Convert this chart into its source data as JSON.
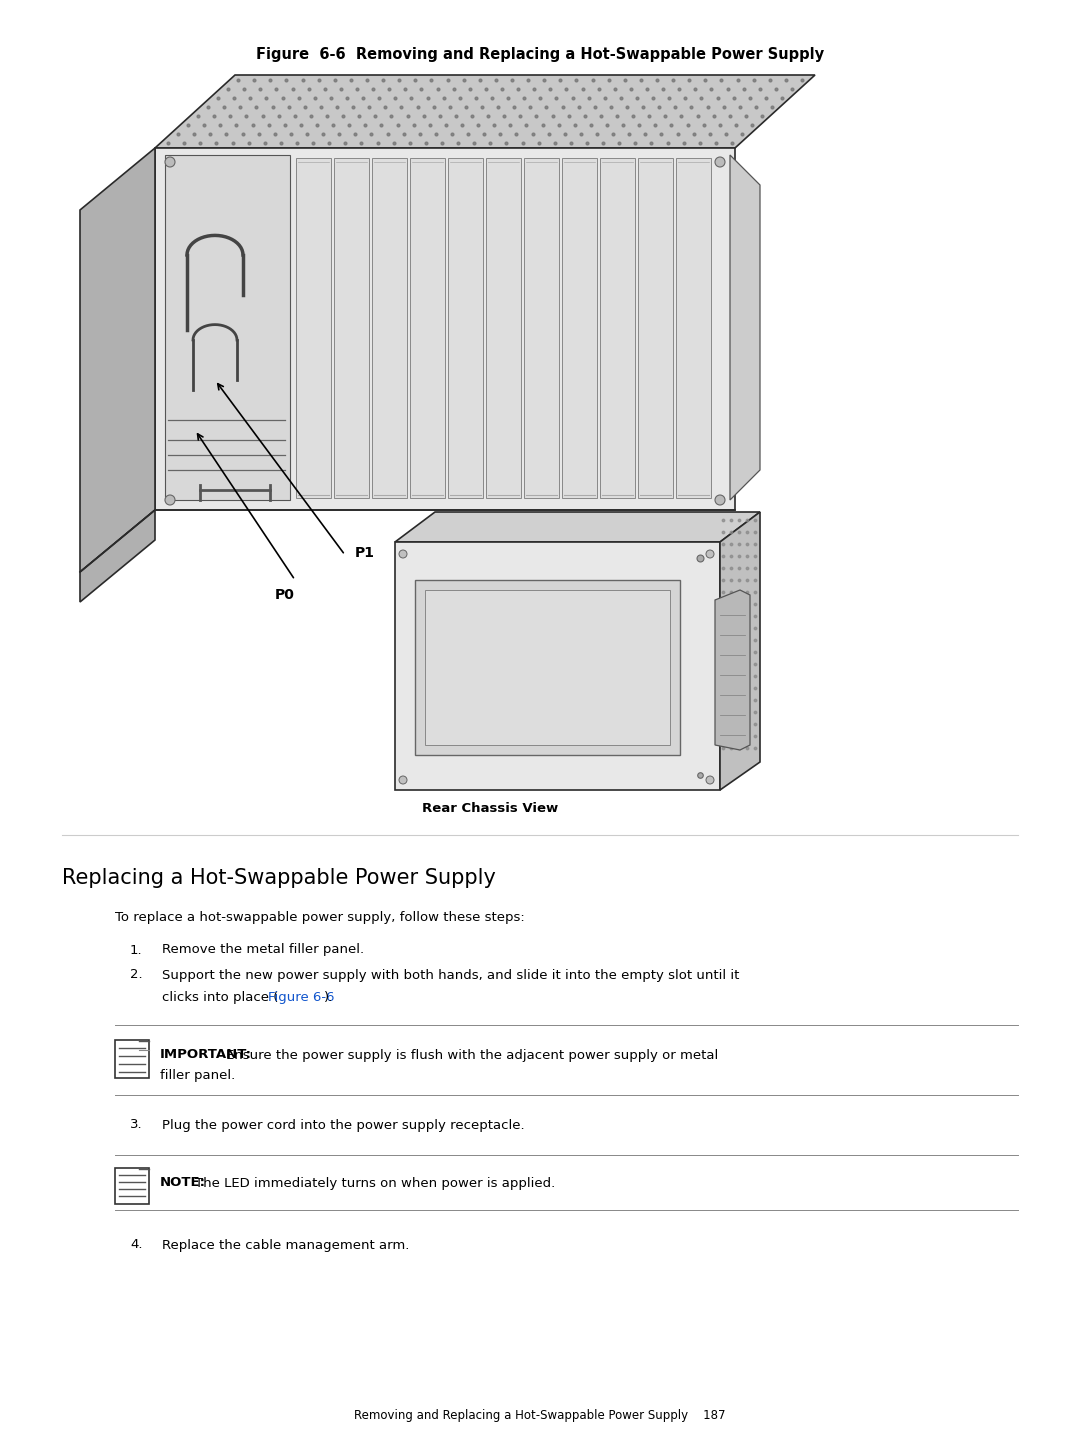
{
  "fig_title": "Figure  6-6  Removing and Replacing a Hot-Swappable Power Supply",
  "section_title": "Replacing a Hot-Swappable Power Supply",
  "intro_text": "To replace a hot-swappable power supply, follow these steps:",
  "step1": "Remove the metal filler panel.",
  "step2_line1": "Support the new power supply with both hands, and slide it into the empty slot until it",
  "step2_line2_pre": "clicks into place (",
  "step2_link": "Figure 6-6",
  "step2_line2_post": ").",
  "important_label": "IMPORTANT:",
  "important_line1": "Ensure the power supply is flush with the adjacent power supply or metal",
  "important_line2": "filler panel.",
  "step3": "Plug the power cord into the power supply receptacle.",
  "note_label": "NOTE:",
  "note_text": "The LED immediately turns on when power is applied.",
  "step4": "Replace the cable management arm.",
  "rear_chassis_label": "Rear Chassis View",
  "footer_text": "Removing and Replacing a Hot-Swappable Power Supply    187",
  "p0_label": "P0",
  "p1_label": "P1",
  "bg_color": "#ffffff",
  "text_color": "#000000",
  "link_color": "#1155cc",
  "line_color": "#999999",
  "fig_title_fontsize": 10.5,
  "section_title_fontsize": 15,
  "body_fontsize": 9.5,
  "note_fontsize": 9.5,
  "footer_fontsize": 8.5
}
